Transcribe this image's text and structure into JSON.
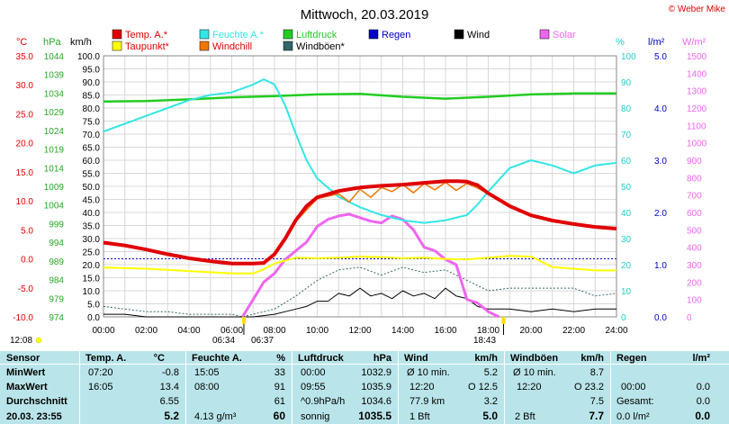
{
  "header": {
    "title": "Mittwoch, 20.03.2019",
    "copyright": "© Weber Mike",
    "timestamp": "12:08",
    "sunrise": "06:34",
    "moment": "06:37",
    "sunset": "18:43"
  },
  "legend": [
    {
      "label": "Temp. A.*",
      "color": "#e00000",
      "text_color": "#e00000"
    },
    {
      "label": "Feuchte A.*",
      "color": "#33e6e6",
      "text_color": "#33e6e6"
    },
    {
      "label": "Luftdruck",
      "color": "#22cc22",
      "text_color": "#22cc22"
    },
    {
      "label": "Regen",
      "color": "#0000cc",
      "text_color": "#0000cc"
    },
    {
      "label": "Wind",
      "color": "#000000",
      "text_color": "#000000"
    },
    {
      "label": "Solar",
      "color": "#ee66ee",
      "text_color": "#ee66ee"
    },
    {
      "label": "Taupunkt*",
      "color": "#ffff00",
      "text_color": "#e00000"
    },
    {
      "label": "Windchill",
      "color": "#ee7700",
      "text_color": "#e00000"
    },
    {
      "label": "Windböen*",
      "color": "#336666",
      "text_color": "#000000"
    }
  ],
  "axes": {
    "temp": {
      "unit": "°C",
      "color": "#e00000",
      "ticks": [
        "35.0",
        "30.0",
        "25.0",
        "20.0",
        "15.0",
        "10.0",
        "5.0",
        "0.0",
        "-5.0",
        "-10.0"
      ]
    },
    "pressure": {
      "unit": "hPa",
      "color": "#22aa22",
      "ticks": [
        "1044",
        "1039",
        "1034",
        "1029",
        "1024",
        "1019",
        "1014",
        "1009",
        "1004",
        "999",
        "994",
        "989",
        "984",
        "979",
        "974"
      ]
    },
    "wind": {
      "unit": "km/h",
      "color": "#000000",
      "ticks": [
        "100.0",
        "95.0",
        "90.0",
        "85.0",
        "80.0",
        "75.0",
        "70.0",
        "65.0",
        "60.0",
        "55.0",
        "50.0",
        "45.0",
        "40.0",
        "35.0",
        "30.0",
        "25.0",
        "20.0",
        "15.0",
        "10.0",
        "5.0",
        "0.0"
      ]
    },
    "humidity": {
      "unit": "%",
      "color": "#22cccc",
      "ticks": [
        "100",
        "90",
        "80",
        "70",
        "60",
        "50",
        "40",
        "30",
        "20",
        "10",
        "0"
      ]
    },
    "rain": {
      "unit": "l/m²",
      "color": "#0000cc",
      "ticks": [
        "5.0",
        "4.0",
        "3.0",
        "2.0",
        "1.0",
        "0.0"
      ]
    },
    "solar": {
      "unit": "W/m²",
      "color": "#ee66ee",
      "ticks": [
        "1500",
        "1400",
        "1300",
        "1200",
        "1100",
        "1000",
        "900",
        "800",
        "700",
        "600",
        "500",
        "400",
        "300",
        "200",
        "100",
        "0"
      ]
    },
    "time": [
      "00:00",
      "02:00",
      "04:00",
      "06:00",
      "08:00",
      "10:00",
      "12:00",
      "14:00",
      "16:00",
      "18:00",
      "20:00",
      "22:00",
      "24:00"
    ]
  },
  "chart_data": {
    "type": "line",
    "x_unit": "hour",
    "xlim": [
      0,
      24
    ],
    "temp_ylim": [
      -10,
      35
    ],
    "humidity_ylim": [
      0,
      100
    ],
    "wind_ylim": [
      0,
      100
    ],
    "solar_ylim": [
      0,
      1500
    ],
    "grid": true,
    "series": [
      {
        "name": "Temp. A.*",
        "axis": "temp",
        "color": "#e00000",
        "x": [
          0,
          1,
          2,
          3,
          4,
          5,
          6,
          7,
          7.5,
          8,
          8.5,
          9,
          9.5,
          10,
          11,
          12,
          13,
          14,
          15,
          16,
          16.5,
          17,
          17.5,
          18,
          19,
          20,
          21,
          22,
          23,
          24
        ],
        "y": [
          2.8,
          2.3,
          1.6,
          0.8,
          0.1,
          -0.4,
          -0.8,
          -0.8,
          -0.7,
          0.8,
          3.5,
          6.7,
          9.1,
          10.6,
          11.7,
          12.3,
          12.6,
          12.8,
          13.1,
          13.4,
          13.4,
          13.3,
          12.7,
          11.3,
          9.1,
          7.5,
          6.6,
          6.0,
          5.5,
          5.2
        ]
      },
      {
        "name": "Taupunkt*",
        "axis": "temp",
        "color": "#ffff00",
        "x": [
          0,
          2,
          4,
          6,
          7,
          7.5,
          8,
          9,
          10,
          11,
          12,
          13,
          14,
          15,
          16,
          17,
          18,
          19,
          20,
          21,
          22,
          23,
          24
        ],
        "y": [
          -1.5,
          -1.7,
          -2.1,
          -2.5,
          -2.5,
          -1.8,
          -0.8,
          0.2,
          0.1,
          0.2,
          0.4,
          0.3,
          0.1,
          0.2,
          0.0,
          -0.1,
          0.2,
          0.5,
          0.4,
          -1.4,
          -1.7,
          -2.0,
          -2.0
        ]
      },
      {
        "name": "Windchill",
        "axis": "temp",
        "color": "#ee7700",
        "x": [
          8,
          9,
          10,
          11,
          11.5,
          12,
          12.5,
          13,
          13.5,
          14,
          14.5,
          15,
          15.5,
          16,
          16.5,
          17,
          17.5,
          18,
          19,
          20,
          21,
          22,
          23,
          24
        ],
        "y": [
          0.6,
          6.5,
          10.4,
          11.2,
          9.8,
          12.0,
          10.6,
          12.3,
          11.6,
          12.8,
          11.4,
          13.0,
          11.9,
          13.2,
          11.8,
          13.0,
          12.2,
          11.2,
          9.0,
          7.4,
          6.5,
          5.9,
          5.4,
          5.1
        ]
      },
      {
        "name": "Feuchte A.*",
        "axis": "humidity",
        "color": "#33e6e6",
        "x": [
          0,
          1,
          2,
          3,
          4,
          5,
          6,
          7,
          7.5,
          8,
          8.5,
          9,
          9.5,
          10,
          11,
          12,
          13,
          14,
          15,
          16,
          17,
          17.5,
          18,
          19,
          20,
          21,
          22,
          23,
          24
        ],
        "y": [
          71,
          74,
          77,
          80,
          83,
          85,
          86,
          89,
          91,
          89,
          81,
          70,
          60,
          53,
          46,
          42,
          39,
          37,
          36,
          37,
          39,
          43,
          48,
          57,
          60,
          58,
          55,
          58,
          59
        ]
      },
      {
        "name": "Luftdruck",
        "axis": "humidity",
        "color": "#22cc22",
        "x": [
          0,
          2,
          4,
          6,
          8,
          10,
          12,
          14,
          16,
          18,
          20,
          22,
          24
        ],
        "y": [
          82.5,
          82.7,
          83.3,
          84.1,
          84.6,
          85.2,
          85.4,
          84.3,
          83.6,
          84.3,
          85.2,
          85.6,
          85.6
        ]
      },
      {
        "name": "Solar",
        "axis": "solar",
        "color": "#ee66ee",
        "x": [
          6.5,
          7,
          7.5,
          8,
          8.5,
          9,
          9.5,
          10,
          10.5,
          11,
          11.5,
          12,
          12.5,
          13,
          13.5,
          14,
          14.5,
          15,
          15.5,
          16,
          16.5,
          17,
          17.5,
          18,
          18.5
        ],
        "y": [
          0,
          100,
          200,
          250,
          330,
          380,
          430,
          520,
          560,
          580,
          590,
          570,
          550,
          540,
          580,
          560,
          500,
          400,
          380,
          330,
          300,
          100,
          80,
          30,
          0
        ]
      },
      {
        "name": "Windböen*",
        "axis": "wind",
        "color": "#336666",
        "x": [
          0,
          1,
          2,
          3,
          4,
          5,
          6,
          6.5,
          7,
          8,
          9,
          10,
          11,
          12,
          13,
          14,
          15,
          16,
          17,
          18,
          19,
          20,
          21,
          22,
          23,
          24
        ],
        "y": [
          4,
          3,
          2,
          2,
          1,
          1,
          1,
          0,
          1,
          3,
          8,
          14,
          18,
          19,
          16,
          19,
          17,
          18,
          14,
          10,
          11,
          11,
          11,
          11,
          8,
          9
        ]
      },
      {
        "name": "Wind",
        "axis": "wind",
        "color": "#000000",
        "x": [
          0,
          1,
          2,
          3,
          4,
          5,
          6,
          6.5,
          7,
          8,
          8.5,
          9,
          9.5,
          10,
          10.5,
          11,
          11.5,
          12,
          12.5,
          13,
          13.5,
          14,
          14.5,
          15,
          15.5,
          16,
          16.5,
          17,
          17.5,
          18,
          19,
          20,
          21,
          22,
          23,
          24
        ],
        "y": [
          1,
          1,
          0,
          0,
          0,
          0,
          0,
          0,
          0,
          1,
          2,
          3,
          4,
          6,
          6,
          9,
          8,
          11,
          8,
          9,
          7,
          10,
          8,
          9,
          7,
          11,
          8,
          7,
          4,
          3,
          3,
          2,
          3,
          2,
          3,
          3
        ]
      }
    ]
  },
  "stats": {
    "headers": {
      "sensor": "Sensor",
      "temp": "Temp. A.",
      "temp_unit": "°C",
      "hum": "Feuchte A.",
      "hum_unit": "%",
      "press": "Luftdruck",
      "press_unit": "hPa",
      "wind": "Wind",
      "wind_unit": "km/h",
      "gust": "Windböen",
      "gust_unit": "km/h",
      "rain": "Regen",
      "rain_unit": "l/m²"
    },
    "rows": [
      {
        "label": "MinWert",
        "temp_time": "07:20",
        "temp_val": "-0.8",
        "hum_time": "15:05",
        "hum_val": "33",
        "press_time": "00:00",
        "press_val": "1032.9",
        "wind_time": "Ø 10 min.",
        "wind_val": "5.2",
        "gust_time": "Ø 10 min.",
        "gust_val": "8.7",
        "rain_time": "",
        "rain_val": ""
      },
      {
        "label": "MaxWert",
        "temp_time": "16:05",
        "temp_val": "13.4",
        "hum_time": "08:00",
        "hum_val": "91",
        "press_time": "09:55",
        "press_val": "1035.9",
        "wind_time": "12:20",
        "wind_dir": "O 12.5",
        "wind_val": "",
        "gust_time": "12:20",
        "gust_val": "O 23.2",
        "rain_time": "00:00",
        "rain_val": "0.0"
      },
      {
        "label": "Durchschnitt",
        "temp_time": "",
        "temp_val": "6.55",
        "hum_time": "",
        "hum_val": "61",
        "press_time": "^0.9hPa/h",
        "press_val": "1034.6",
        "wind_time": "77.9 km",
        "wind_val": "3.2",
        "gust_time": "",
        "gust_val": "7.5",
        "rain_time": "Gesamt:",
        "rain_val": "0.0"
      },
      {
        "label": "20.03. 23:55",
        "temp_time": "",
        "temp_val": "5.2",
        "hum_time": "4.13 g/m³",
        "hum_val": "60",
        "press_time": "sonnig",
        "press_val": "1035.5",
        "wind_time": "1 Bft",
        "wind_val": "5.0",
        "gust_time": "2 Bft",
        "gust_val": "7.7",
        "rain_time": "0.0 l/m²",
        "rain_val": "0.0"
      }
    ]
  }
}
